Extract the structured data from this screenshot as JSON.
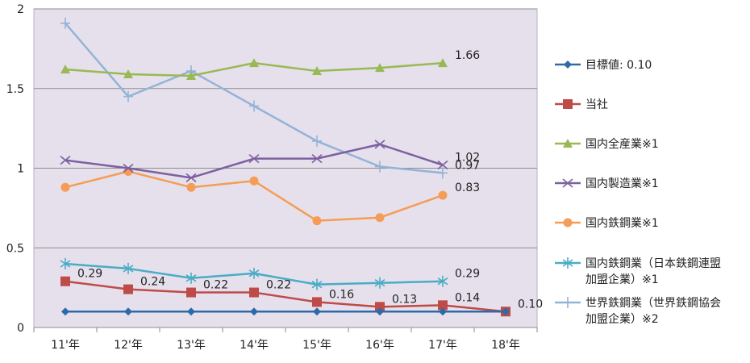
{
  "chart_data": {
    "type": "line",
    "categories": [
      "11'年",
      "12'年",
      "13'年",
      "14'年",
      "15'年",
      "16'年",
      "17'年",
      "18'年"
    ],
    "ylim": [
      0,
      2
    ],
    "yticks": [
      "0",
      "0.5",
      "1",
      "1.5",
      "2"
    ],
    "grid": true,
    "legend_position": "right",
    "plot_background": "#e6e0ec",
    "series": [
      {
        "name": "目標値: 0.10",
        "color": "#2e6aa8",
        "marker": "diamond",
        "values": [
          0.1,
          0.1,
          0.1,
          0.1,
          0.1,
          0.1,
          0.1,
          0.1
        ]
      },
      {
        "name": "当社",
        "color": "#be4b48",
        "marker": "square",
        "values": [
          0.29,
          0.24,
          0.22,
          0.22,
          0.16,
          0.13,
          0.14,
          0.1
        ],
        "labels": [
          "0.29",
          "0.24",
          "0.22",
          "0.22",
          "0.16",
          "0.13",
          "0.14",
          "0.10"
        ]
      },
      {
        "name": "国内全産業※1",
        "color": "#98b954",
        "marker": "triangle",
        "values": [
          1.62,
          1.59,
          1.58,
          1.66,
          1.61,
          1.63,
          1.66,
          null
        ],
        "labels": [
          null,
          null,
          null,
          null,
          null,
          null,
          "1.66",
          null
        ]
      },
      {
        "name": "国内製造業※1",
        "color": "#7d60a0",
        "marker": "x",
        "values": [
          1.05,
          1.0,
          0.94,
          1.06,
          1.06,
          1.15,
          1.02,
          null
        ],
        "labels": [
          null,
          null,
          null,
          null,
          null,
          null,
          "1.02",
          null
        ]
      },
      {
        "name": "国内鉄鋼業※1",
        "color": "#f59d56",
        "marker": "circle",
        "values": [
          0.88,
          0.98,
          0.88,
          0.92,
          0.67,
          0.69,
          0.83,
          null
        ],
        "labels": [
          null,
          null,
          null,
          null,
          null,
          null,
          "0.83",
          null
        ]
      },
      {
        "name": "国内鉄鋼業（日本鉄鋼連盟加盟企業）※1",
        "legend_lines": [
          "国内鉄鋼業（日本鉄鋼連盟",
          "加盟企業）※1"
        ],
        "color": "#4aacc5",
        "marker": "star",
        "values": [
          0.4,
          0.37,
          0.31,
          0.34,
          0.27,
          0.28,
          0.29,
          null
        ],
        "labels": [
          null,
          null,
          null,
          null,
          null,
          null,
          "0.29",
          null
        ]
      },
      {
        "name": "世界鉄鋼業（世界鉄鋼協会加盟企業）※2",
        "legend_lines": [
          "世界鉄鋼業（世界鉄鋼協会",
          "加盟企業）※2"
        ],
        "color": "#93b3d7",
        "marker": "plus",
        "values": [
          1.91,
          1.45,
          1.61,
          1.39,
          1.17,
          1.01,
          0.97,
          null
        ],
        "labels": [
          null,
          null,
          null,
          null,
          null,
          null,
          "0.97",
          null
        ]
      }
    ]
  }
}
